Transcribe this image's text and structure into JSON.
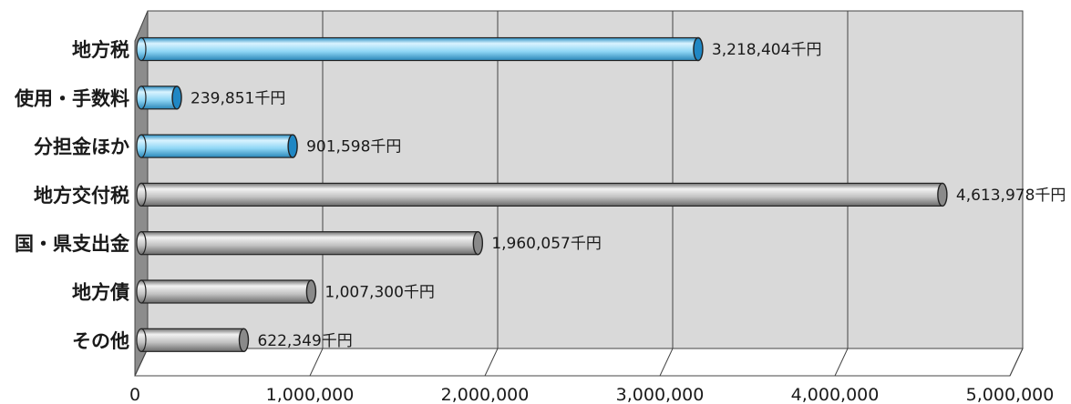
{
  "chart_data": {
    "type": "bar",
    "orientation": "horizontal",
    "categories": [
      "地方税",
      "使用・手数料",
      "分担金ほか",
      "地方交付税",
      "国・県支出金",
      "地方債",
      "その他"
    ],
    "values": [
      3218404,
      239851,
      901598,
      4613978,
      1960057,
      1007300,
      622349
    ],
    "value_labels": [
      "3,218,404千円",
      "239,851千円",
      "901,598千円",
      "4,613,978千円",
      "1,960,057千円",
      "1,007,300千円",
      "622,349千円"
    ],
    "bar_colors": [
      "#7fd0f0",
      "#7fd0f0",
      "#7fd0f0",
      "#b8b8b8",
      "#b8b8b8",
      "#b8b8b8",
      "#b8b8b8"
    ],
    "x_ticks": [
      "0",
      "1,000,000",
      "2,000,000",
      "3,000,000",
      "4,000,000",
      "5,000,000"
    ],
    "xlim": [
      0,
      5000000
    ],
    "grid": true,
    "colors": {
      "wall": "#d9d9d9",
      "side_wall": "#8c8c8c",
      "grid": "#444444",
      "blue_bar": "#7fd0f0",
      "gray_bar": "#b8b8b8"
    }
  }
}
